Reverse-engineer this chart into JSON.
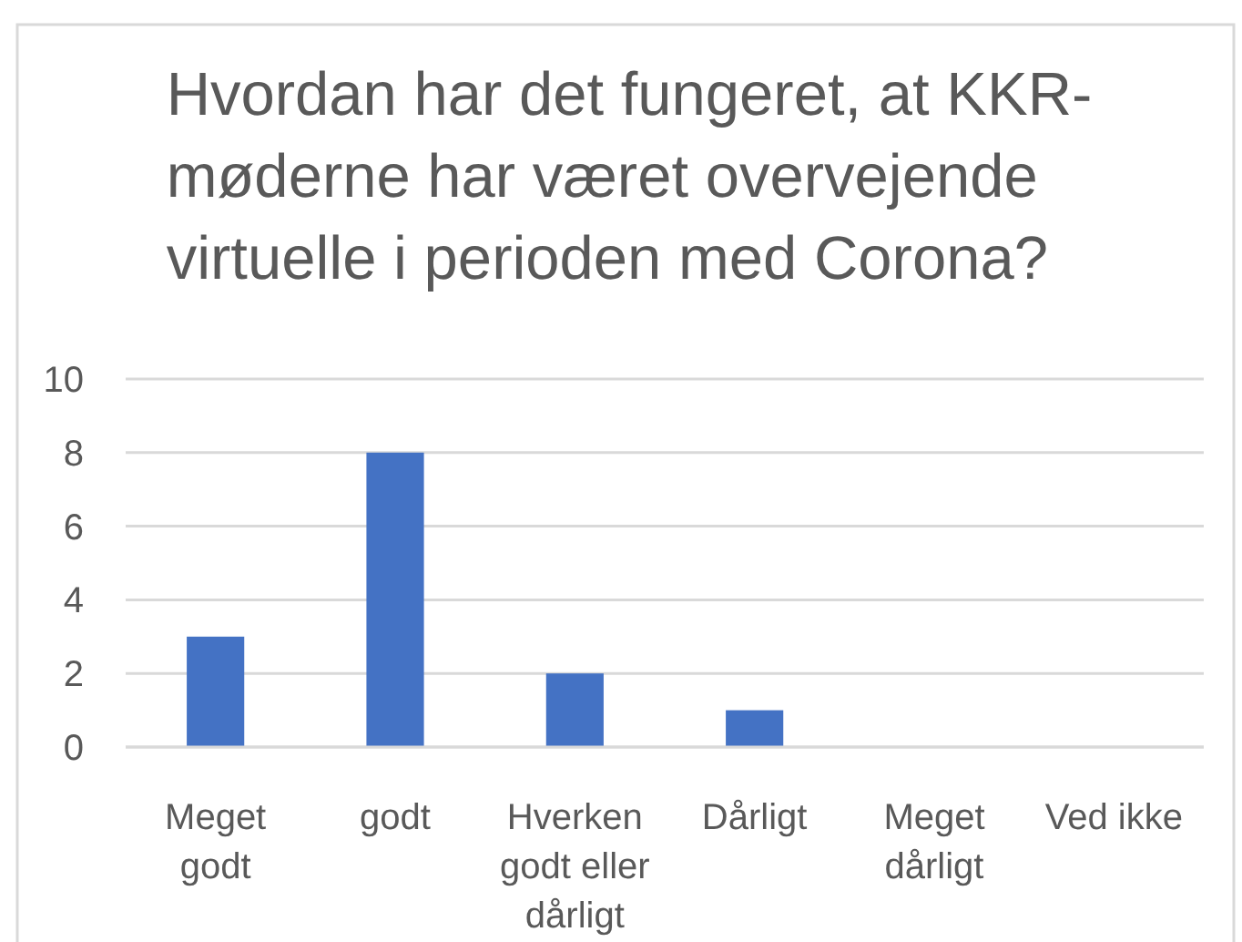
{
  "chart_data": {
    "type": "bar",
    "title": "Hvordan har det fungeret, at KKR-møderne har været overvejende virtuelle i perioden med Corona?",
    "categories": [
      "Meget godt",
      "godt",
      "Hverken godt eller dårligt",
      "Dårligt",
      "Meget dårligt",
      "Ved ikke"
    ],
    "values": [
      3,
      8,
      2,
      1,
      0,
      0
    ],
    "color": "#4472c4",
    "ylim": [
      0,
      10
    ],
    "yticks": [
      0,
      2,
      4,
      6,
      8,
      10
    ],
    "grid": "y"
  }
}
